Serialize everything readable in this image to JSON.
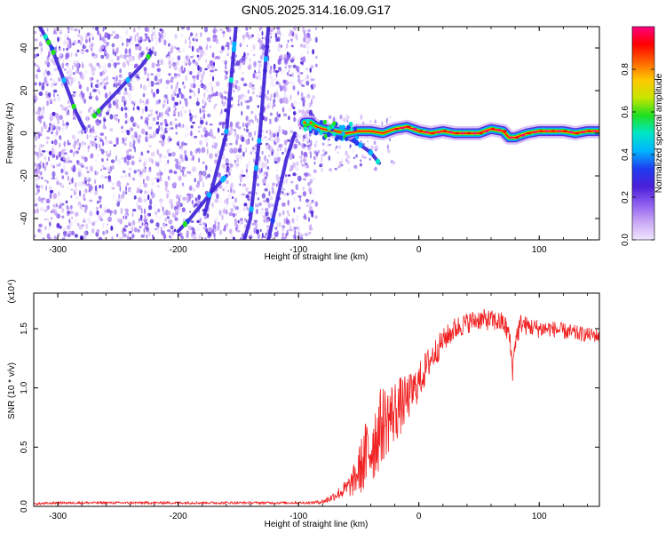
{
  "figure": {
    "title": "GN05.2025.314.16.09.G17"
  },
  "colors": {
    "snr_line": "#f02020",
    "ridge": "#3a1fd6",
    "axis": "#000000",
    "colormap": [
      "#f0e6ff",
      "#c9a8f5",
      "#8f5ff0",
      "#4a1fd8",
      "#1f3cf0",
      "#00b4ff",
      "#00e6c8",
      "#20e020",
      "#c8e600",
      "#ffc800",
      "#ff6400",
      "#ff0000",
      "#ff0080"
    ]
  },
  "chart_data": [
    {
      "type": "heatmap",
      "title": "GN05.2025.314.16.09.G17",
      "xlabel": "Height of straight line (km)",
      "ylabel": "Frequency (Hz)",
      "xlim": [
        -320,
        150
      ],
      "ylim": [
        -50,
        50
      ],
      "xticks": [
        -300,
        -200,
        -100,
        0,
        100
      ],
      "xtick_labels": [
        "-300",
        "-200",
        "-100",
        "0",
        "100"
      ],
      "yticks": [
        -40,
        -20,
        0,
        20,
        40
      ],
      "ytick_labels": [
        "-40",
        "-20",
        "0",
        "20",
        "40"
      ],
      "colorbar": {
        "label": "Normalized spectral amplitude",
        "range": [
          0,
          1
        ],
        "ticks": [
          0.0,
          0.2,
          0.4,
          0.6,
          0.8
        ],
        "tick_labels": [
          "0.0",
          "0.2",
          "0.4",
          "0.6",
          "0.8"
        ]
      },
      "noise_region_x": [
        -320,
        -85
      ],
      "main_signal": {
        "x": [
          -95,
          -90,
          -85,
          -80,
          -70,
          -60,
          -50,
          -40,
          -30,
          -20,
          -10,
          0,
          10,
          20,
          30,
          40,
          50,
          60,
          70,
          75,
          80,
          90,
          100,
          110,
          120,
          130,
          140,
          150
        ],
        "y": [
          5,
          5,
          3,
          2,
          1,
          0,
          1,
          1,
          0,
          2,
          3,
          1,
          0,
          1,
          0,
          0,
          0,
          2,
          1,
          -2,
          -2,
          0,
          1,
          1,
          1,
          0,
          1,
          1
        ]
      },
      "ridges": [
        {
          "x": [
            -315,
            -305,
            -295,
            -285,
            -278
          ],
          "y": [
            50,
            40,
            25,
            10,
            2
          ]
        },
        {
          "x": [
            -270,
            -260,
            -250,
            -240,
            -230,
            -222
          ],
          "y": [
            8,
            14,
            20,
            26,
            32,
            38
          ]
        },
        {
          "x": [
            -178,
            -170,
            -160,
            -152
          ],
          "y": [
            -38,
            -22,
            0,
            50
          ]
        },
        {
          "x": [
            -145,
            -140,
            -132,
            -125
          ],
          "y": [
            -50,
            -40,
            0,
            50
          ]
        },
        {
          "x": [
            -200,
            -190,
            -180,
            -170,
            -160
          ],
          "y": [
            -46,
            -40,
            -33,
            -26,
            -20
          ]
        },
        {
          "x": [
            -125,
            -118,
            -110,
            -103
          ],
          "y": [
            -50,
            -32,
            -12,
            0
          ]
        },
        {
          "x": [
            -60,
            -50,
            -40,
            -33
          ],
          "y": [
            -2,
            -5,
            -9,
            -14
          ]
        }
      ]
    },
    {
      "type": "line",
      "xlabel": "Height of straight line (km)",
      "ylabel": "SNR (10 * v/v)",
      "y_multiplier_label": "(x10⁴)",
      "xlim": [
        -320,
        150
      ],
      "ylim": [
        0,
        1.8
      ],
      "xticks": [
        -300,
        -200,
        -100,
        0,
        100
      ],
      "xtick_labels": [
        "-300",
        "-200",
        "-100",
        "0",
        "100"
      ],
      "yticks": [
        0.0,
        0.5,
        1.0,
        1.5
      ],
      "ytick_labels": [
        "0.0",
        "0.5",
        "1.0",
        "1.5"
      ],
      "series": [
        {
          "x": [
            -320,
            -300,
            -280,
            -260,
            -240,
            -220,
            -200,
            -180,
            -160,
            -140,
            -120,
            -100,
            -90,
            -80,
            -75,
            -70,
            -65,
            -60,
            -55,
            -50,
            -45,
            -40,
            -35,
            -30,
            -25,
            -20,
            -15,
            -10,
            -5,
            0,
            5,
            10,
            15,
            20,
            25,
            30,
            40,
            50,
            60,
            70,
            75,
            78,
            80,
            85,
            90,
            100,
            110,
            120,
            130,
            140,
            150
          ],
          "y": [
            0.02,
            0.03,
            0.03,
            0.03,
            0.03,
            0.03,
            0.03,
            0.03,
            0.03,
            0.03,
            0.03,
            0.03,
            0.03,
            0.04,
            0.06,
            0.09,
            0.12,
            0.15,
            0.2,
            0.3,
            0.4,
            0.5,
            0.6,
            0.7,
            0.75,
            0.8,
            0.85,
            0.9,
            0.97,
            1.05,
            1.15,
            1.25,
            1.32,
            1.4,
            1.45,
            1.5,
            1.55,
            1.58,
            1.57,
            1.55,
            1.45,
            1.15,
            1.4,
            1.55,
            1.52,
            1.5,
            1.5,
            1.48,
            1.46,
            1.45,
            1.44
          ],
          "noise_amp": [
            0.01,
            0.01,
            0.01,
            0.01,
            0.01,
            0.01,
            0.01,
            0.01,
            0.01,
            0.01,
            0.01,
            0.01,
            0.01,
            0.02,
            0.03,
            0.04,
            0.06,
            0.08,
            0.12,
            0.2,
            0.3,
            0.35,
            0.35,
            0.33,
            0.3,
            0.28,
            0.25,
            0.2,
            0.18,
            0.16,
            0.15,
            0.13,
            0.12,
            0.1,
            0.1,
            0.1,
            0.09,
            0.09,
            0.09,
            0.09,
            0.1,
            0.1,
            0.1,
            0.09,
            0.08,
            0.08,
            0.07,
            0.07,
            0.07,
            0.06,
            0.06
          ]
        }
      ]
    }
  ]
}
